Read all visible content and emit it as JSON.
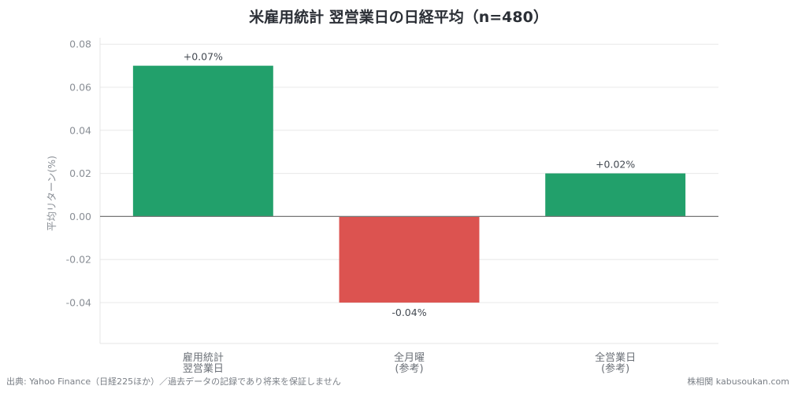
{
  "chart_data": {
    "type": "bar",
    "title": "米雇用統計 翌営業日の日経平均（n=480）",
    "ylabel": "平均リターン(%)",
    "categories": [
      [
        "雇用統計",
        "翌営業日"
      ],
      [
        "全月曜",
        "(参考)"
      ],
      [
        "全営業日",
        "(参考)"
      ]
    ],
    "values": [
      0.07,
      -0.04,
      0.02
    ],
    "data_labels": [
      "+0.07%",
      "-0.04%",
      "+0.02%"
    ],
    "ylim": [
      -0.059,
      0.083
    ],
    "yticks": [
      0.08,
      0.06,
      0.04,
      0.02,
      0.0,
      -0.02,
      -0.04
    ],
    "ytick_labels": [
      "0.08",
      "0.06",
      "0.04",
      "0.02",
      "0.00",
      "-0.02",
      "-0.04"
    ],
    "grid": true,
    "colors": {
      "positive": "#22a06b",
      "negative": "#dc5350",
      "grid": "#e8e8e8",
      "zero_line": "#777777"
    }
  },
  "footer": {
    "source": "出典: Yahoo Finance（日経225ほか）／過去データの記録であり将来を保証しません",
    "credit": "株相関 kabusoukan.com"
  }
}
